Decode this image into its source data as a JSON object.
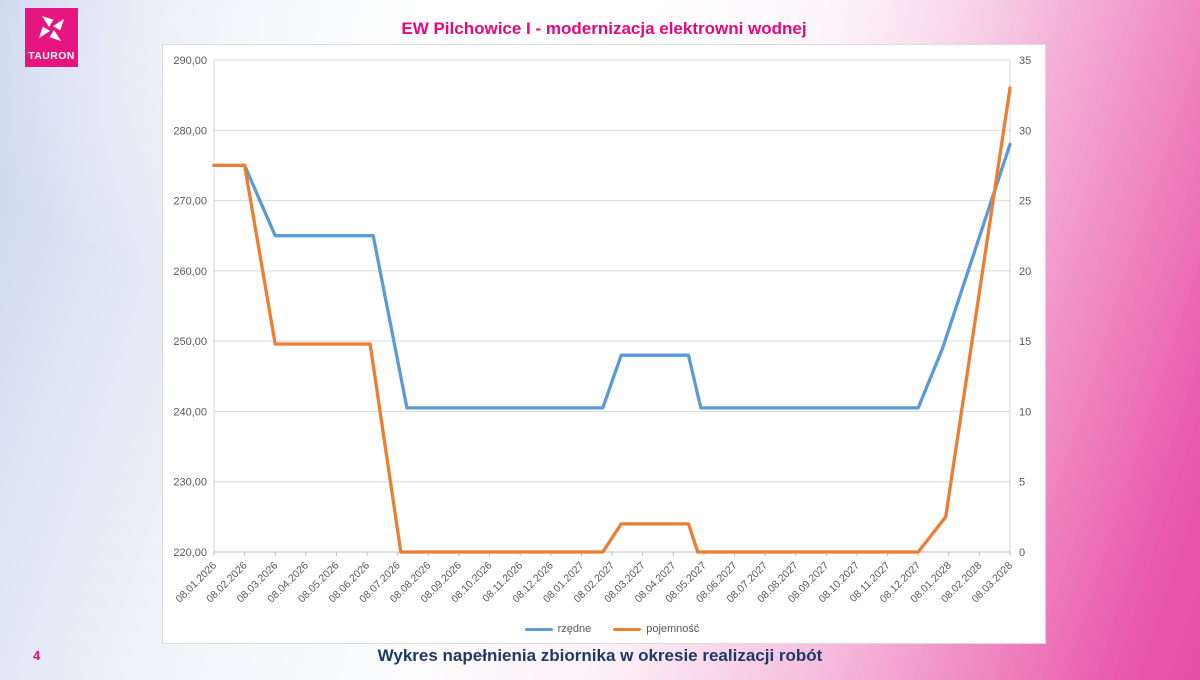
{
  "page": {
    "number": "4",
    "caption": "Wykres napełnienia zbiornika w okresie realizacji robót"
  },
  "logo": {
    "brand": "TAURON",
    "background_color": "#e5147f"
  },
  "chart_title": "EW Pilchowice I - modernizacja elektrowni wodnej",
  "colors": {
    "title_magenta": "#e5087f",
    "caption_navy": "#1e3a66",
    "series_blue": "#5b9bd5",
    "series_orange": "#ed7d31",
    "gridline": "#d9d9d9",
    "axis_line": "#bfbfbf",
    "axis_text": "#595959"
  },
  "chart_data": {
    "type": "line",
    "title": "EW Pilchowice I - modernizacja elektrowni wodnej",
    "grid": true,
    "legend_position": "bottom",
    "x_tick_rotation": -45,
    "categories": [
      "08.01.2026",
      "08.02.2026",
      "08.03.2026",
      "08.04.2026",
      "08.05.2026",
      "08.06.2026",
      "08.07.2026",
      "08.08.2026",
      "08.09.2026",
      "08.10.2026",
      "08.11.2026",
      "08.12.2026",
      "08.01.2027",
      "08.02.2027",
      "08.03.2027",
      "08.04.2027",
      "08.05.2027",
      "08.06.2027",
      "08.07.2027",
      "08.08.2027",
      "08.09.2027",
      "08.10.2027",
      "08.11.2027",
      "08.12.2027",
      "08.01.2028",
      "08.02.2028",
      "08.03.2028"
    ],
    "y_left": {
      "min": 220,
      "max": 290,
      "step": 10,
      "tick_labels": [
        "290,00",
        "280,00",
        "270,00",
        "260,00",
        "250,00",
        "240,00",
        "230,00",
        "220,00"
      ]
    },
    "y_right": {
      "min": 0,
      "max": 35,
      "step": 5,
      "tick_labels": [
        "35",
        "30",
        "25",
        "20",
        "15",
        "10",
        "5",
        "0"
      ]
    },
    "series": [
      {
        "name": "rzędne",
        "axis": "left",
        "color": "#5b9bd5",
        "points": [
          [
            0,
            275
          ],
          [
            1,
            275
          ],
          [
            2,
            265
          ],
          [
            5.2,
            265
          ],
          [
            6.3,
            240.5
          ],
          [
            12.7,
            240.5
          ],
          [
            13.3,
            248
          ],
          [
            15.5,
            248
          ],
          [
            15.9,
            240.5
          ],
          [
            23,
            240.5
          ],
          [
            23.8,
            249
          ],
          [
            26,
            278
          ]
        ]
      },
      {
        "name": "pojemność",
        "axis": "right",
        "color": "#ed7d31",
        "points": [
          [
            0,
            27.5
          ],
          [
            1,
            27.5
          ],
          [
            2,
            14.8
          ],
          [
            5.1,
            14.8
          ],
          [
            6.1,
            0
          ],
          [
            12.7,
            0
          ],
          [
            13.3,
            2
          ],
          [
            15.5,
            2
          ],
          [
            15.8,
            0
          ],
          [
            23,
            0
          ],
          [
            23.9,
            2.5
          ],
          [
            26,
            33
          ]
        ]
      }
    ]
  }
}
